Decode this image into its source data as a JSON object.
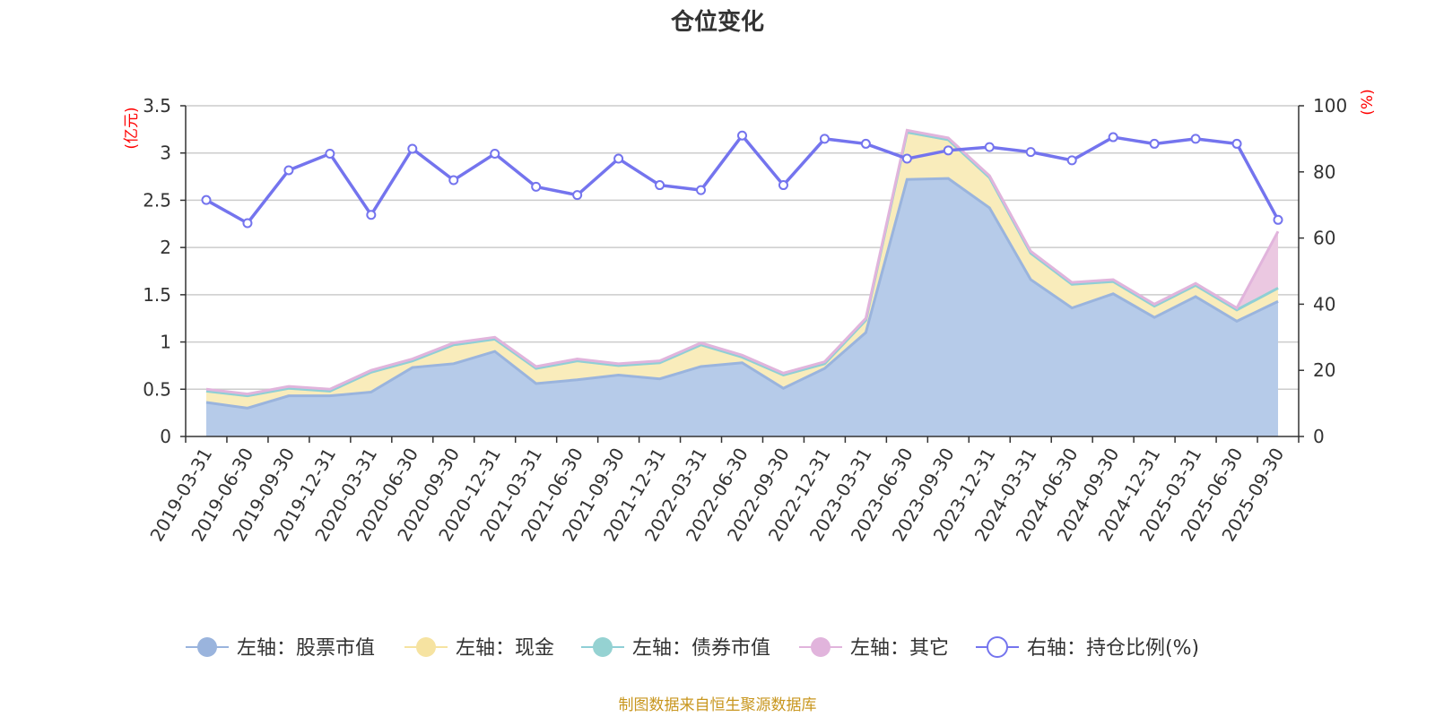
{
  "chart_data": {
    "type": "area",
    "title": "仓位变化",
    "left_axis": {
      "unit": "(亿元)",
      "ylim": [
        0,
        3.5
      ],
      "ticks": [
        "0",
        "0.5",
        "1",
        "1.5",
        "2",
        "2.5",
        "3",
        "3.5"
      ]
    },
    "right_axis": {
      "unit": "(%)",
      "ylim": [
        0,
        100
      ],
      "ticks": [
        "0",
        "20",
        "40",
        "60",
        "80",
        "100"
      ]
    },
    "categories": [
      "2019-03-31",
      "2019-06-30",
      "2019-09-30",
      "2019-12-31",
      "2020-03-31",
      "2020-06-30",
      "2020-09-30",
      "2020-12-31",
      "2021-03-31",
      "2021-06-30",
      "2021-09-30",
      "2021-12-31",
      "2022-03-31",
      "2022-06-30",
      "2022-09-30",
      "2022-12-31",
      "2023-03-31",
      "2023-06-30",
      "2023-09-30",
      "2023-12-31",
      "2024-03-31",
      "2024-06-30",
      "2024-09-30",
      "2024-12-31",
      "2025-03-31",
      "2025-06-30",
      "2025-09-30"
    ],
    "series": [
      {
        "name": "左轴：股票市值",
        "axis": "left",
        "stack": true,
        "values": [
          0.36,
          0.3,
          0.43,
          0.43,
          0.47,
          0.73,
          0.77,
          0.9,
          0.56,
          0.6,
          0.65,
          0.61,
          0.74,
          0.78,
          0.51,
          0.72,
          1.1,
          2.72,
          2.73,
          2.42,
          1.66,
          1.36,
          1.51,
          1.26,
          1.48,
          1.22,
          1.43
        ]
      },
      {
        "name": "左轴：现金",
        "axis": "left",
        "stack": true,
        "values": [
          0.12,
          0.13,
          0.08,
          0.05,
          0.21,
          0.07,
          0.2,
          0.13,
          0.16,
          0.2,
          0.1,
          0.17,
          0.23,
          0.06,
          0.14,
          0.05,
          0.13,
          0.5,
          0.41,
          0.32,
          0.28,
          0.25,
          0.13,
          0.12,
          0.12,
          0.12,
          0.14
        ]
      },
      {
        "name": "左轴：债券市值",
        "axis": "left",
        "stack": true,
        "values": [
          0,
          0,
          0,
          0,
          0,
          0,
          0,
          0,
          0,
          0,
          0,
          0,
          0,
          0,
          0,
          0,
          0,
          0,
          0,
          0,
          0,
          0,
          0,
          0,
          0,
          0,
          0
        ]
      },
      {
        "name": "左轴：其它",
        "axis": "left",
        "stack": true,
        "values": [
          0.02,
          0.02,
          0.02,
          0.02,
          0.02,
          0.02,
          0.02,
          0.02,
          0.02,
          0.02,
          0.02,
          0.02,
          0.02,
          0.02,
          0.02,
          0.02,
          0.02,
          0.02,
          0.02,
          0.02,
          0.02,
          0.02,
          0.02,
          0.02,
          0.02,
          0.02,
          0.6
        ]
      },
      {
        "name": "右轴：持仓比例(%)",
        "axis": "right",
        "type": "line",
        "values": [
          71.5,
          64.5,
          80.5,
          85.5,
          67,
          87,
          77.5,
          85.5,
          75.5,
          73,
          84,
          76,
          74.5,
          91,
          76,
          90,
          88.5,
          84,
          86.5,
          87.5,
          86,
          83.5,
          90.5,
          88.5,
          90,
          88.5,
          65.5
        ]
      }
    ],
    "legend_position": "bottom",
    "grid": true
  },
  "colors": {
    "stock_fill": "#b6cbe9",
    "stock_line": "#9ab4dd",
    "cash_fill": "#f9ecbb",
    "cash_line": "#f6e3a1",
    "bond_line": "#8fcfd6",
    "bond_marker": "#95d2d2",
    "other_fill": "#ebc8e1",
    "other_line": "#e1b4dc",
    "ratio_line": "#7474ee",
    "unit_red": "#ff0000",
    "source_gold": "#c8961e"
  },
  "source_text": "制图数据来自恒生聚源数据库"
}
